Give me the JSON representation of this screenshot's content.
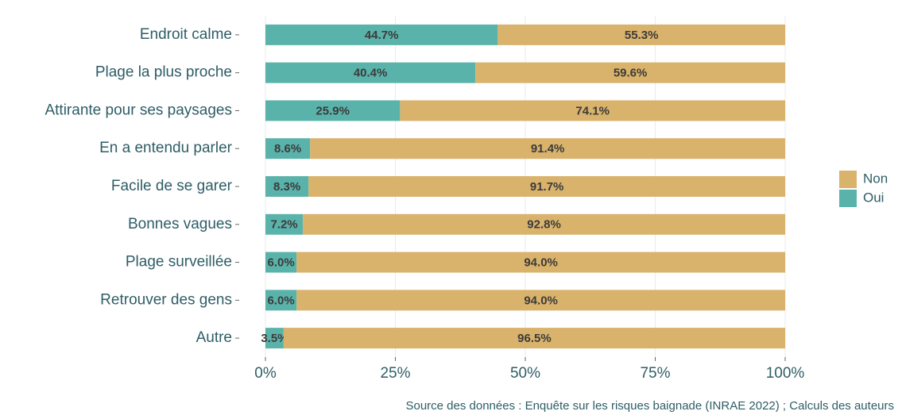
{
  "chart_data": {
    "type": "bar",
    "orientation": "horizontal",
    "stacked": true,
    "categories": [
      "Endroit calme",
      "Plage la plus proche",
      "Attirante pour ses paysages",
      "En a entendu parler",
      "Facile de se garer",
      "Bonnes vagues",
      "Plage surveillée",
      "Retrouver des gens",
      "Autre"
    ],
    "series": [
      {
        "name": "Oui",
        "color": "#5ab3aa",
        "values": [
          44.7,
          40.4,
          25.9,
          8.6,
          8.3,
          7.2,
          6.0,
          6.0,
          3.5
        ],
        "value_labels": [
          "44.7%",
          "40.4%",
          "25.9%",
          "8.6%",
          "8.3%",
          "7.2%",
          "6.0%",
          "6.0%",
          "3.5%"
        ]
      },
      {
        "name": "Non",
        "color": "#d9b26b",
        "values": [
          55.3,
          59.6,
          74.1,
          91.4,
          91.7,
          92.8,
          94.0,
          94.0,
          96.5
        ],
        "value_labels": [
          "55.3%",
          "59.6%",
          "74.1%",
          "91.4%",
          "91.7%",
          "92.8%",
          "94.0%",
          "94.0%",
          "96.5%"
        ]
      }
    ],
    "xlim": [
      0,
      100
    ],
    "xticks": [
      {
        "value": 0,
        "label": "0%"
      },
      {
        "value": 25,
        "label": "25%"
      },
      {
        "value": 50,
        "label": "50%"
      },
      {
        "value": 75,
        "label": "75%"
      },
      {
        "value": 100,
        "label": "100%"
      }
    ],
    "grid": true,
    "legend": "right",
    "caption": "Source des données : Enquête sur les risques baignade (INRAE 2022) ; Calculs des auteurs"
  }
}
